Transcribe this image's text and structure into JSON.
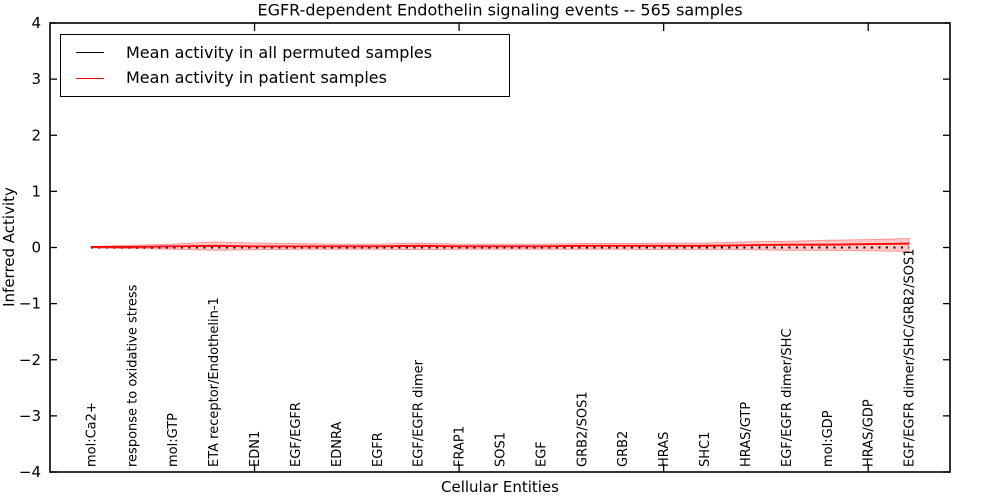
{
  "chart_data": {
    "type": "line",
    "title": "EGFR-dependent Endothelin signaling events -- 565 samples",
    "xlabel": "Cellular Entities",
    "ylabel": "Inferred Activity",
    "ylim": [
      -4,
      4
    ],
    "yticks": [
      -4,
      -3,
      -2,
      -1,
      0,
      1,
      2,
      3,
      4
    ],
    "xlim": [
      0,
      22
    ],
    "xticks": [
      5,
      10,
      15,
      20
    ],
    "grid": false,
    "legend_position": "upper left",
    "categories": [
      "mol:Ca2+",
      "response to oxidative stress",
      "mol:GTP",
      "ETA receptor/Endothelin-1",
      "EDN1",
      "EGF/EGFR",
      "EDNRA",
      "EGFR",
      "EGF/EGFR dimer",
      "FRAP1",
      "SOS1",
      "EGF",
      "GRB2/SOS1",
      "GRB2",
      "HRAS",
      "SHC1",
      "HRAS/GTP",
      "EGF/EGFR dimer/SHC",
      "mol:GDP",
      "HRAS/GDP",
      "EGF/EGFR dimer/SHC/GRB2/SOS1"
    ],
    "series": [
      {
        "name": "Mean activity in all permuted samples",
        "color": "#000000",
        "style": "dotted",
        "values": [
          0,
          0,
          0,
          0,
          0,
          0,
          0,
          0,
          0,
          0,
          0,
          0,
          0,
          0,
          0,
          0,
          0,
          0,
          0,
          0,
          0
        ]
      },
      {
        "name": "Mean activity in patient samples",
        "color": "#ff0000",
        "style": "solid",
        "values": [
          0.01,
          0.01,
          0.02,
          0.03,
          0.02,
          0.02,
          0.02,
          0.02,
          0.03,
          0.02,
          0.02,
          0.02,
          0.03,
          0.03,
          0.03,
          0.03,
          0.04,
          0.05,
          0.05,
          0.06,
          0.07
        ]
      }
    ],
    "band": {
      "name": "patient sample activity spread",
      "color": "#ff0000",
      "opacity": 0.22,
      "upper": [
        0.02,
        0.04,
        0.06,
        0.1,
        0.08,
        0.07,
        0.06,
        0.06,
        0.08,
        0.06,
        0.06,
        0.06,
        0.07,
        0.07,
        0.08,
        0.08,
        0.1,
        0.11,
        0.13,
        0.14,
        0.16
      ],
      "lower": [
        -0.01,
        -0.02,
        -0.03,
        -0.05,
        -0.04,
        -0.03,
        -0.03,
        -0.03,
        -0.04,
        -0.03,
        -0.03,
        -0.03,
        -0.03,
        -0.03,
        -0.04,
        -0.04,
        -0.04,
        -0.05,
        -0.05,
        -0.06,
        -0.07
      ]
    },
    "colors": {
      "frame": "#000000",
      "background": "#ffffff"
    }
  }
}
